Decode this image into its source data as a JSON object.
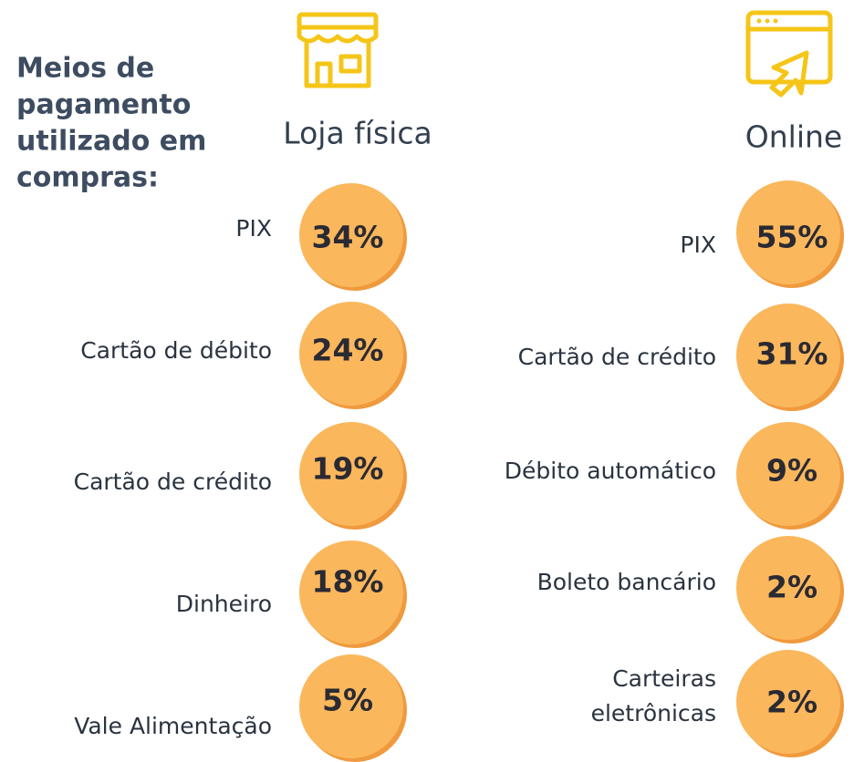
{
  "title": [
    "Meios de",
    "pagamento",
    "utilizado em",
    "compras:"
  ],
  "columns": [
    {
      "heading": "Loja física",
      "items": [
        {
          "label": [
            "PIX"
          ],
          "value": "34%"
        },
        {
          "label": [
            "Cartão de débito"
          ],
          "value": "24%"
        },
        {
          "label": [
            "Cartão de crédito"
          ],
          "value": "19%"
        },
        {
          "label": [
            "Dinheiro"
          ],
          "value": "18%"
        },
        {
          "label": [
            "Vale Alimentação"
          ],
          "value": "5%"
        }
      ]
    },
    {
      "heading": "Online",
      "items": [
        {
          "label": [
            "PIX"
          ],
          "value": "55%"
        },
        {
          "label": [
            "Cartão de crédito"
          ],
          "value": "31%"
        },
        {
          "label": [
            "Débito automático"
          ],
          "value": "9%"
        },
        {
          "label": [
            "Boleto bancário"
          ],
          "value": "2%"
        },
        {
          "label": [
            "Carteiras",
            "eletrônicas"
          ],
          "value": "2%"
        }
      ]
    }
  ]
}
